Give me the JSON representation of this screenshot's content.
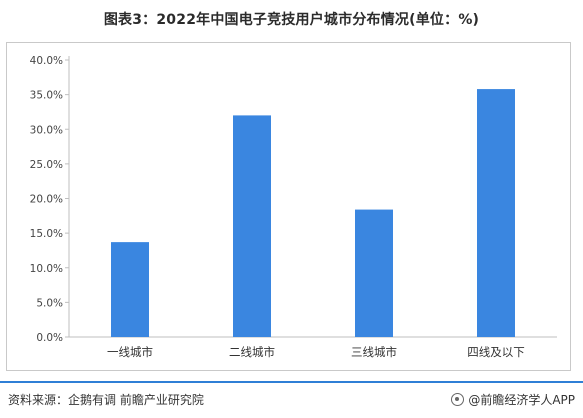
{
  "chart_data": {
    "type": "bar",
    "title": "图表3：2022年中国电子竞技用户城市分布情况(单位：%)",
    "categories": [
      "一线城市",
      "二线城市",
      "三线城市",
      "四线及以下"
    ],
    "values": [
      13.7,
      32.0,
      18.4,
      35.8
    ],
    "y_ticks": [
      "0.0%",
      "5.0%",
      "10.0%",
      "15.0%",
      "20.0%",
      "25.0%",
      "30.0%",
      "35.0%",
      "40.0%"
    ],
    "ylim": [
      0,
      40
    ],
    "grid": false,
    "legend": "none",
    "colors": {
      "bar": "#3a86e0",
      "axis": "#bfbfbf"
    }
  },
  "footer": {
    "source": "资料来源：企鹅有调 前瞻产业研究院",
    "brand": "@前瞻经济学人APP"
  }
}
